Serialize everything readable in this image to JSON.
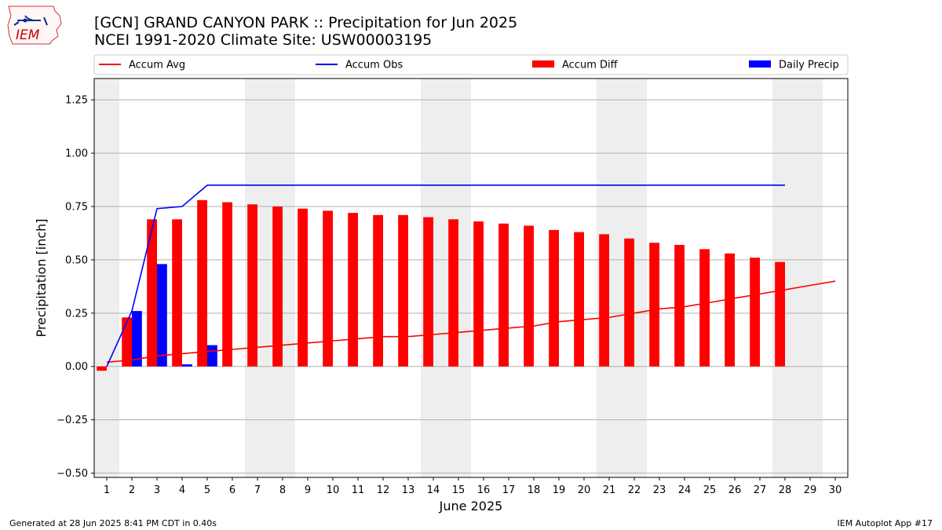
{
  "header": {
    "title_line1": "[GCN] GRAND CANYON PARK :: Precipitation for Jun 2025",
    "title_line2": "NCEI 1991-2020 Climate Site: USW00003195"
  },
  "logo": {
    "text": "IEM"
  },
  "footer": {
    "left": "Generated at 28 Jun 2025 8:41 PM CDT in 0.40s",
    "right": "IEM Autoplot App #17"
  },
  "colors": {
    "avg": "#ff0000",
    "obs": "#0000ff",
    "diff": "#ff0000",
    "daily": "#0000ff",
    "weekend_shade": "#eeeeee",
    "grid": "#b0b0b0"
  },
  "chart_data": {
    "type": "bar",
    "xlabel": "June 2025",
    "ylabel": "Precipitation [inch]",
    "xlim": [
      0.5,
      30.5
    ],
    "ylim": [
      -0.52,
      1.35
    ],
    "yticks": [
      -0.5,
      -0.25,
      0,
      0.25,
      0.5,
      0.75,
      1.0,
      1.25
    ],
    "ytick_labels": [
      "−0.50",
      "−0.25",
      "0.00",
      "0.25",
      "0.50",
      "0.75",
      "1.00",
      "1.25"
    ],
    "days": [
      1,
      2,
      3,
      4,
      5,
      6,
      7,
      8,
      9,
      10,
      11,
      12,
      13,
      14,
      15,
      16,
      17,
      18,
      19,
      20,
      21,
      22,
      23,
      24,
      25,
      26,
      27,
      28,
      29,
      30
    ],
    "grid": "horizontal",
    "legend_position": "top",
    "shaded_weekends": [
      [
        0.5,
        1.5
      ],
      [
        6.5,
        8.5
      ],
      [
        13.5,
        15.5
      ],
      [
        20.5,
        22.5
      ],
      [
        27.5,
        29.5
      ]
    ],
    "series": [
      {
        "name": "Accum Avg",
        "kind": "line",
        "color": "#ff0000",
        "x": [
          1,
          2,
          3,
          4,
          5,
          6,
          7,
          8,
          9,
          10,
          11,
          12,
          13,
          14,
          15,
          16,
          17,
          18,
          19,
          20,
          21,
          22,
          23,
          24,
          25,
          26,
          27,
          28,
          29,
          30
        ],
        "values": [
          0.02,
          0.03,
          0.05,
          0.06,
          0.07,
          0.08,
          0.09,
          0.1,
          0.11,
          0.12,
          0.13,
          0.14,
          0.14,
          0.15,
          0.16,
          0.17,
          0.18,
          0.19,
          0.21,
          0.22,
          0.23,
          0.25,
          0.27,
          0.28,
          0.3,
          0.32,
          0.34,
          0.36,
          0.38,
          0.4
        ]
      },
      {
        "name": "Accum Obs",
        "kind": "line",
        "color": "#0000ff",
        "x": [
          1,
          2,
          3,
          4,
          5,
          6,
          7,
          8,
          9,
          10,
          11,
          12,
          13,
          14,
          15,
          16,
          17,
          18,
          19,
          20,
          21,
          22,
          23,
          24,
          25,
          26,
          27,
          28
        ],
        "values": [
          0.0,
          0.26,
          0.74,
          0.75,
          0.85,
          0.85,
          0.85,
          0.85,
          0.85,
          0.85,
          0.85,
          0.85,
          0.85,
          0.85,
          0.85,
          0.85,
          0.85,
          0.85,
          0.85,
          0.85,
          0.85,
          0.85,
          0.85,
          0.85,
          0.85,
          0.85,
          0.85,
          0.85
        ]
      },
      {
        "name": "Accum Diff",
        "kind": "bar",
        "color": "#ff0000",
        "x": [
          1,
          2,
          3,
          4,
          5,
          6,
          7,
          8,
          9,
          10,
          11,
          12,
          13,
          14,
          15,
          16,
          17,
          18,
          19,
          20,
          21,
          22,
          23,
          24,
          25,
          26,
          27,
          28
        ],
        "values": [
          -0.02,
          0.23,
          0.69,
          0.69,
          0.78,
          0.77,
          0.76,
          0.75,
          0.74,
          0.73,
          0.72,
          0.71,
          0.71,
          0.7,
          0.69,
          0.68,
          0.67,
          0.66,
          0.64,
          0.63,
          0.62,
          0.6,
          0.58,
          0.57,
          0.55,
          0.53,
          0.51,
          0.49
        ]
      },
      {
        "name": "Daily Precip",
        "kind": "bar",
        "color": "#0000ff",
        "x": [
          1,
          2,
          3,
          4,
          5,
          6,
          7,
          8,
          9,
          10,
          11,
          12,
          13,
          14,
          15,
          16,
          17,
          18,
          19,
          20,
          21,
          22,
          23,
          24,
          25,
          26,
          27,
          28
        ],
        "values": [
          0.0,
          0.26,
          0.48,
          0.01,
          0.1,
          0,
          0,
          0,
          0,
          0,
          0,
          0,
          0,
          0,
          0,
          0,
          0,
          0,
          0,
          0,
          0,
          0,
          0,
          0,
          0,
          0,
          0,
          0
        ]
      }
    ]
  }
}
